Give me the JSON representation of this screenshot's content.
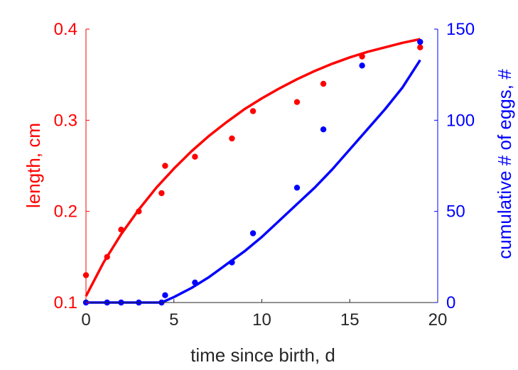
{
  "chart_data": {
    "type": "scatter",
    "xlabel": "time since birth, d",
    "ylabel_left": "length, cm",
    "ylabel_right": "cumulative # of eggs, #",
    "xlim": [
      0,
      20
    ],
    "ylim_left": [
      0.1,
      0.4
    ],
    "ylim_right": [
      0,
      150
    ],
    "x_ticks": [
      "0",
      "5",
      "10",
      "15",
      "20"
    ],
    "y_left_ticks": [
      "0.1",
      "0.2",
      "0.3",
      "0.4"
    ],
    "y_right_ticks": [
      "0",
      "50",
      "100",
      "150"
    ],
    "grid": false,
    "colors": {
      "left": "#ff0000",
      "right": "#0000ff",
      "text": "#262626"
    },
    "series": [
      {
        "axis": "left",
        "kind": "points",
        "color": "#ff0000",
        "x": [
          0,
          1.2,
          2,
          3,
          4.3,
          4.5,
          6.2,
          8.3,
          9.5,
          12,
          13.5,
          15.7,
          19
        ],
        "y": [
          0.13,
          0.15,
          0.18,
          0.2,
          0.22,
          0.25,
          0.26,
          0.28,
          0.31,
          0.32,
          0.34,
          0.37,
          0.38
        ]
      },
      {
        "axis": "left",
        "kind": "line",
        "color": "#ff0000",
        "x": [
          0,
          1,
          2,
          3,
          4,
          5,
          6,
          7,
          8,
          9,
          10,
          11,
          12,
          13,
          14,
          15,
          16,
          17,
          18,
          19
        ],
        "y": [
          0.107,
          0.144,
          0.175,
          0.202,
          0.226,
          0.247,
          0.266,
          0.283,
          0.298,
          0.312,
          0.324,
          0.335,
          0.345,
          0.354,
          0.362,
          0.369,
          0.375,
          0.38,
          0.385,
          0.389
        ]
      },
      {
        "axis": "right",
        "kind": "points",
        "color": "#0000ff",
        "x": [
          0,
          1.2,
          2,
          3,
          4.3,
          4.5,
          6.2,
          8.3,
          9.5,
          12,
          13.5,
          15.7,
          19
        ],
        "y": [
          0,
          0,
          0,
          0,
          0,
          4,
          11,
          22,
          38,
          63,
          95,
          130,
          143
        ]
      },
      {
        "axis": "right",
        "kind": "line",
        "color": "#0000ff",
        "x": [
          0,
          4.3,
          5,
          6,
          7,
          8,
          9,
          10,
          11,
          12,
          13,
          14,
          15,
          16,
          17,
          18,
          19
        ],
        "y": [
          0,
          0,
          3,
          8,
          14,
          21,
          28,
          36,
          45,
          54,
          63,
          73,
          84,
          95,
          106,
          118,
          133
        ]
      }
    ]
  }
}
